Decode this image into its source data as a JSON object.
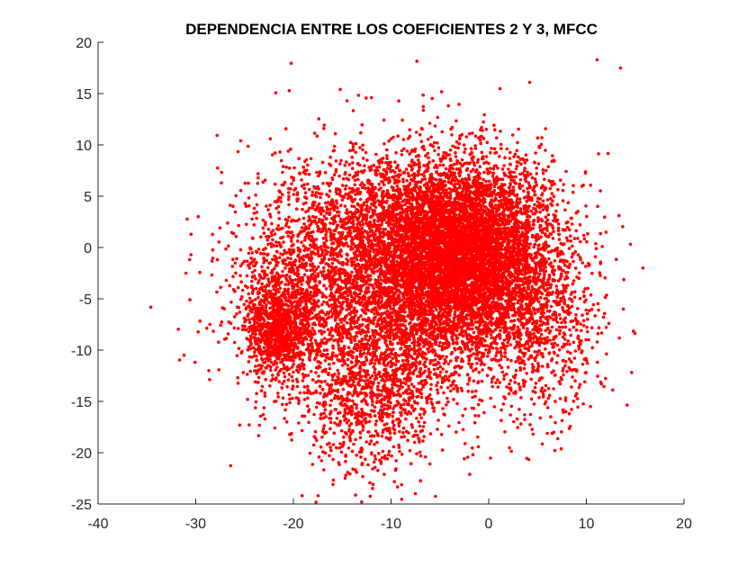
{
  "chart_data": {
    "type": "scatter",
    "title": "DEPENDENCIA ENTRE LOS COEFICIENTES 2 Y 3, MFCC",
    "xlabel": "",
    "ylabel": "",
    "xlim": [
      -40,
      20
    ],
    "ylim": [
      -25,
      20
    ],
    "xticks": [
      "-40",
      "-30",
      "-20",
      "-10",
      "0",
      "10",
      "20"
    ],
    "yticks": [
      "20",
      "15",
      "10",
      "5",
      "0",
      "-5",
      "-10",
      "-15",
      "-20",
      "-25"
    ],
    "grid": false,
    "box": false,
    "marker_color": "#ff0000",
    "clusters": [
      {
        "center": [
          -2,
          0
        ],
        "spread": [
          4.5,
          4.5
        ],
        "count": 5200
      },
      {
        "center": [
          -7,
          -4
        ],
        "spread": [
          5.5,
          4.5
        ],
        "count": 2600
      },
      {
        "center": [
          -21.5,
          -8
        ],
        "spread": [
          1.6,
          2.2
        ],
        "count": 900
      },
      {
        "center": [
          -18,
          -3
        ],
        "spread": [
          4.5,
          5.5
        ],
        "count": 1500
      },
      {
        "center": [
          -12,
          -14
        ],
        "spread": [
          4.0,
          4.0
        ],
        "count": 1100
      },
      {
        "center": [
          5,
          -8
        ],
        "spread": [
          3.5,
          4.5
        ],
        "count": 700
      },
      {
        "center": [
          -10,
          3
        ],
        "spread": [
          4.0,
          3.5
        ],
        "count": 900
      }
    ],
    "outliers": [
      {
        "x": 11.1,
        "y": 18.3
      },
      {
        "x": 13.5,
        "y": 17.5
      },
      {
        "x": 4.2,
        "y": 16.1
      },
      {
        "x": -15.2,
        "y": 15.4
      },
      {
        "x": -14.5,
        "y": 14.3
      },
      {
        "x": -31.0,
        "y": -2.5
      },
      {
        "x": 15.8,
        "y": -2.0
      },
      {
        "x": -25.5,
        "y": -17.3
      },
      {
        "x": -13.0,
        "y": -24.8
      },
      {
        "x": -7.5,
        "y": -24.0
      },
      {
        "x": -2.5,
        "y": -20.6
      },
      {
        "x": 13.8,
        "y": -6.0
      }
    ]
  }
}
